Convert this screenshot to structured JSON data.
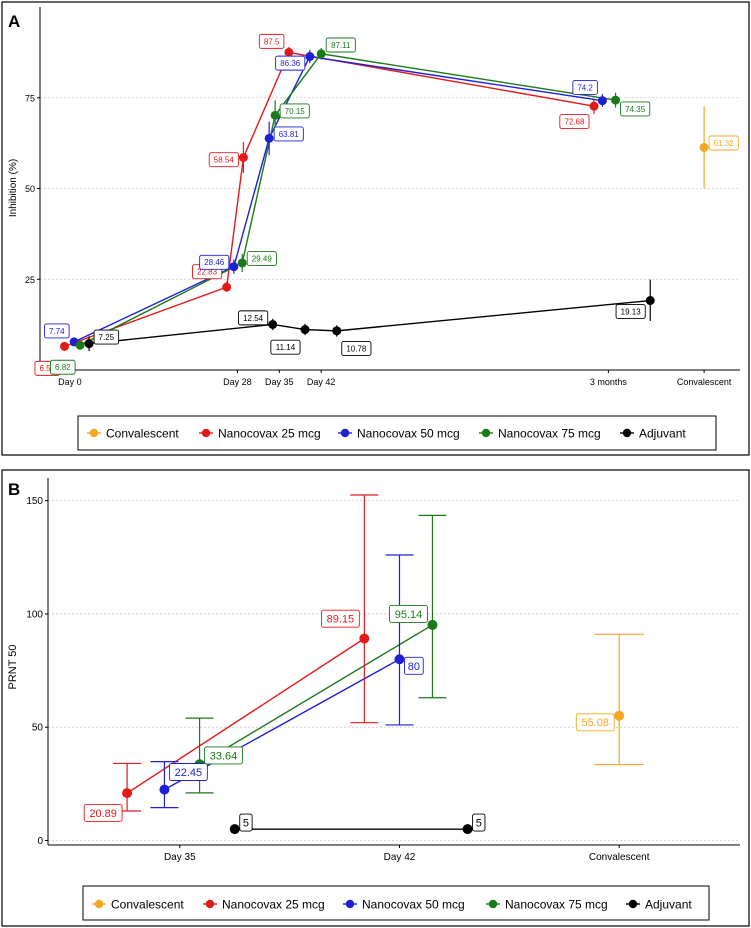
{
  "colors": {
    "Convalescent": "#f5a623",
    "Nanocovax 25 mcg": "#e31a1c",
    "Nanocovax 50 mcg": "#1f1fd6",
    "Nanocovax 75 mcg": "#1a7a1a",
    "Adjuvant": "#000000"
  },
  "chart_data": [
    {
      "type": "line",
      "panel_letter": "A",
      "ylabel": "Inhibition (%)",
      "xlabel": "",
      "ylim": [
        0,
        100
      ],
      "yticks": [
        25,
        50,
        75
      ],
      "grid": "horizontal dotted",
      "legend_position": "bottom",
      "x_ticks": [
        {
          "label": "Day 0",
          "x": 0
        },
        {
          "label": "Day 28",
          "x": 28
        },
        {
          "label": "Day 35",
          "x": 35
        },
        {
          "label": "Day 42",
          "x": 42
        },
        {
          "label": "3 months",
          "x": 90
        },
        {
          "label": "Convalescent",
          "x": 106
        }
      ],
      "legend": [
        "Convalescent",
        "Nanocovax 25 mcg",
        "Nanocovax 50 mcg",
        "Nanocovax 75 mcg",
        "Adjuvant"
      ],
      "series": [
        {
          "name": "Nanocovax 25 mcg",
          "points": [
            {
              "x": -0.9,
              "y": 6.51,
              "lo": 6.51,
              "hi": 6.51,
              "label": "6.51",
              "ldx": -4,
              "ldy": 10
            },
            {
              "x": 26.2,
              "y": 22.83,
              "lo": 21.5,
              "hi": 24.2,
              "label": "22.83",
              "ldx": -3,
              "ldy": -7
            },
            {
              "x": 29.0,
              "y": 58.54,
              "lo": 54.3,
              "hi": 62.8,
              "label": "58.54",
              "ldx": -4,
              "ldy": 1
            },
            {
              "x": 36.6,
              "y": 87.5,
              "lo": 86.0,
              "hi": 89.0,
              "label": "87.5",
              "ldx": -3,
              "ldy": -5
            },
            {
              "x": 87.6,
              "y": 72.68,
              "lo": 70.5,
              "hi": 74.5,
              "label": "72.68",
              "ldx": -3,
              "ldy": 7
            }
          ]
        },
        {
          "name": "Nanocovax 50 mcg",
          "points": [
            {
              "x": 0.7,
              "y": 7.74,
              "lo": 7.74,
              "hi": 7.74,
              "label": "7.74",
              "ldx": -1,
              "ldy": -5
            },
            {
              "x": 27.4,
              "y": 28.46,
              "lo": 26.5,
              "hi": 30.4,
              "label": "28.46",
              "ldx": -3,
              "ldy": -2
            },
            {
              "x": 33.3,
              "y": 63.81,
              "lo": 59.2,
              "hi": 68.4,
              "label": "63.81",
              "ldx": 4,
              "ldy": -2
            },
            {
              "x": 40.1,
              "y": 86.36,
              "lo": 84.5,
              "hi": 88.2,
              "label": "86.36",
              "ldx": -3,
              "ldy": 3
            },
            {
              "x": 89.0,
              "y": 74.2,
              "lo": 72.5,
              "hi": 76.0,
              "label": "74.2",
              "ldx": -3,
              "ldy": -6
            }
          ]
        },
        {
          "name": "Nanocovax 75 mcg",
          "points": [
            {
              "x": 1.7,
              "y": 6.82,
              "lo": 6.82,
              "hi": 6.82,
              "label": "6.82",
              "ldx": -4,
              "ldy": 10
            },
            {
              "x": 28.8,
              "y": 29.49,
              "lo": 27.0,
              "hi": 32.0,
              "label": "29.49",
              "ldx": 4,
              "ldy": -2
            },
            {
              "x": 34.3,
              "y": 70.15,
              "lo": 66.0,
              "hi": 74.3,
              "label": "70.15",
              "ldx": 4,
              "ldy": -2
            },
            {
              "x": 42.0,
              "y": 87.11,
              "lo": 85.5,
              "hi": 88.7,
              "label": "87.11",
              "ldx": 3,
              "ldy": -4
            },
            {
              "x": 91.2,
              "y": 74.35,
              "lo": 72.3,
              "hi": 76.4,
              "label": "74.35",
              "ldx": 4,
              "ldy": 4
            }
          ]
        },
        {
          "name": "Adjuvant",
          "points": [
            {
              "x": 3.2,
              "y": 7.25,
              "lo": 5.2,
              "hi": 9.3,
              "label": "7.25",
              "ldx": 3,
              "ldy": -3
            },
            {
              "x": 33.9,
              "y": 12.54,
              "lo": 11.0,
              "hi": 14.1,
              "label": "12.54",
              "ldx": -3,
              "ldy": -3
            },
            {
              "x": 39.3,
              "y": 11.14,
              "lo": 9.6,
              "hi": 12.7,
              "label": "11.14",
              "ldx": -4,
              "ldy": 8
            },
            {
              "x": 44.6,
              "y": 10.78,
              "lo": 9.2,
              "hi": 12.3,
              "label": "10.78",
              "ldx": 4,
              "ldy": 8
            },
            {
              "x": 97.0,
              "y": 19.13,
              "lo": 13.5,
              "hi": 24.9,
              "label": "19.13",
              "ldx": -3,
              "ldy": 5
            }
          ]
        },
        {
          "name": "Convalescent",
          "points": [
            {
              "x": 106.0,
              "y": 61.32,
              "lo": 50.0,
              "hi": 72.7,
              "label": "61.32",
              "ldx": 4,
              "ldy": -2
            }
          ]
        }
      ]
    },
    {
      "type": "line",
      "panel_letter": "B",
      "ylabel": "PRNT 50",
      "xlabel": "",
      "ylim": [
        -2,
        160
      ],
      "yticks": [
        0,
        50,
        100,
        150
      ],
      "grid": "horizontal dotted",
      "legend_position": "bottom",
      "x_ticks": [
        {
          "label": "Day 35",
          "x": 1
        },
        {
          "label": "Day 42",
          "x": 2
        },
        {
          "label": "Convalescent",
          "x": 3
        }
      ],
      "legend": [
        "Convalescent",
        "Nanocovax 25 mcg",
        "Nanocovax 50 mcg",
        "Nanocovax 75 mcg",
        "Adjuvant"
      ],
      "series": [
        {
          "name": "Nanocovax 25 mcg",
          "points": [
            {
              "x": 0.76,
              "y": 20.89,
              "lo": 13.0,
              "hi": 34.0,
              "label": "20.89",
              "ldx": -3,
              "ldy": 9
            },
            {
              "x": 1.84,
              "y": 89.15,
              "lo": 52.0,
              "hi": 152.5,
              "label": "89.15",
              "ldx": -3,
              "ldy": -9
            }
          ]
        },
        {
          "name": "Nanocovax 50 mcg",
          "points": [
            {
              "x": 0.93,
              "y": 22.45,
              "lo": 14.5,
              "hi": 34.8,
              "label": "22.45",
              "ldx": 4,
              "ldy": -8
            },
            {
              "x": 2.0,
              "y": 80.0,
              "lo": 51.0,
              "hi": 126.0,
              "label": "80",
              "ldx": 4,
              "ldy": 3
            }
          ]
        },
        {
          "name": "Nanocovax 75 mcg",
          "points": [
            {
              "x": 1.09,
              "y": 33.64,
              "lo": 21.0,
              "hi": 54.0,
              "label": "33.64",
              "ldx": 4,
              "ldy": -4
            },
            {
              "x": 2.15,
              "y": 95.14,
              "lo": 63.0,
              "hi": 143.5,
              "label": "95.14",
              "ldx": -3,
              "ldy": -5
            }
          ]
        },
        {
          "name": "Adjuvant",
          "points": [
            {
              "x": 1.25,
              "y": 5.0,
              "lo": 5.0,
              "hi": 5.0,
              "label": "5",
              "ldx": 4,
              "ldy": -3
            },
            {
              "x": 2.31,
              "y": 5.0,
              "lo": 5.0,
              "hi": 5.0,
              "label": "5",
              "ldx": 4,
              "ldy": -3
            }
          ]
        },
        {
          "name": "Convalescent",
          "points": [
            {
              "x": 3.0,
              "y": 55.08,
              "lo": 33.5,
              "hi": 91.0,
              "label": "55.08",
              "ldx": -3,
              "ldy": 3
            }
          ]
        }
      ]
    }
  ]
}
